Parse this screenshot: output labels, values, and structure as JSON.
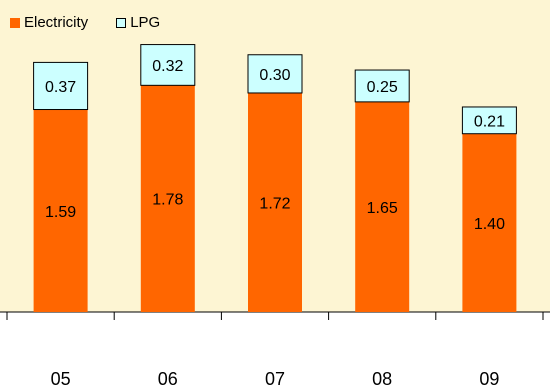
{
  "chart_data": {
    "type": "bar",
    "stacked": true,
    "categories": [
      "05",
      "06",
      "07",
      "08",
      "09"
    ],
    "series": [
      {
        "name": "Electricity",
        "values": [
          1.59,
          1.78,
          1.72,
          1.65,
          1.4
        ],
        "color": "#ff6600"
      },
      {
        "name": "LPG",
        "values": [
          0.37,
          0.32,
          0.3,
          0.25,
          0.21
        ],
        "color": "#ccffff"
      }
    ],
    "value_labels": {
      "Electricity": [
        "1.59",
        "1.78",
        "1.72",
        "1.65",
        "1.40"
      ],
      "LPG": [
        "0.37",
        "0.32",
        "0.30",
        "0.25",
        "0.21"
      ]
    },
    "ylim": [
      0,
      2.45
    ],
    "grid": false,
    "legend_position": "top-left",
    "background": "#fdf5d3"
  },
  "legend": {
    "electricity": "Electricity",
    "lpg": "LPG"
  }
}
